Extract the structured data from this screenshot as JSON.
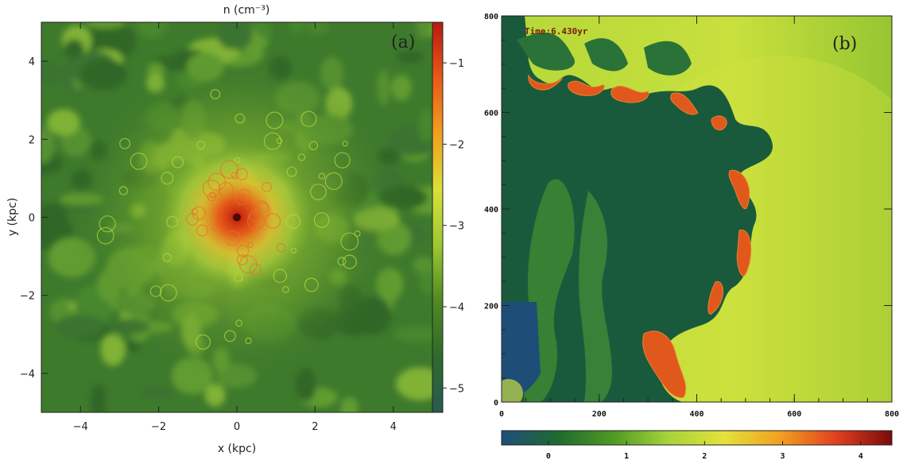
{
  "chart_data": [
    {
      "type": "heatmap",
      "panel_label": "(a)",
      "colorbar_title": "n (cm⁻³)",
      "xlabel": "x (kpc)",
      "ylabel": "y (kpc)",
      "xlim": [
        -5,
        5
      ],
      "ylim": [
        -5,
        5
      ],
      "xticks": [
        -4,
        -2,
        0,
        2,
        4
      ],
      "xtick_labels": [
        "−4",
        "−2",
        "0",
        "2",
        "4"
      ],
      "yticks": [
        -4,
        -2,
        0,
        2,
        4
      ],
      "ytick_labels": [
        "−4",
        "−2",
        "0",
        "2",
        "4"
      ],
      "colorbar": {
        "orientation": "vertical",
        "range": [
          -5.3,
          -0.5
        ],
        "ticks": [
          -1,
          -2,
          -3,
          -4,
          -5
        ],
        "tick_labels": [
          "−1",
          "−2",
          "−3",
          "−4",
          "−5"
        ],
        "colors": [
          "#2a5a52",
          "#2f6a2a",
          "#4f8a22",
          "#9cc832",
          "#d8e03a",
          "#f0a020",
          "#e85a18",
          "#b81a10"
        ]
      },
      "peak": {
        "x": 0,
        "y": 0
      }
    },
    {
      "type": "heatmap",
      "panel_label": "(b)",
      "time_label": "Time:6.430yr",
      "xlim": [
        0,
        800
      ],
      "ylim": [
        0,
        800
      ],
      "xticks": [
        0,
        200,
        400,
        600,
        800
      ],
      "xtick_labels": [
        "0",
        "200",
        "400",
        "600",
        "800"
      ],
      "yticks": [
        0,
        200,
        400,
        600,
        800
      ],
      "ytick_labels": [
        "0",
        "200",
        "400",
        "600",
        "800"
      ],
      "colorbar": {
        "orientation": "horizontal",
        "range": [
          -0.6,
          4.4
        ],
        "ticks": [
          0,
          1,
          2,
          3,
          4
        ],
        "tick_labels": [
          "0",
          "1",
          "2",
          "3",
          "4"
        ],
        "colors": [
          "#1f4e7a",
          "#1e6a30",
          "#4e9a22",
          "#a8d43a",
          "#e4e23a",
          "#f0a020",
          "#e04020",
          "#7a0a0a"
        ]
      }
    }
  ]
}
